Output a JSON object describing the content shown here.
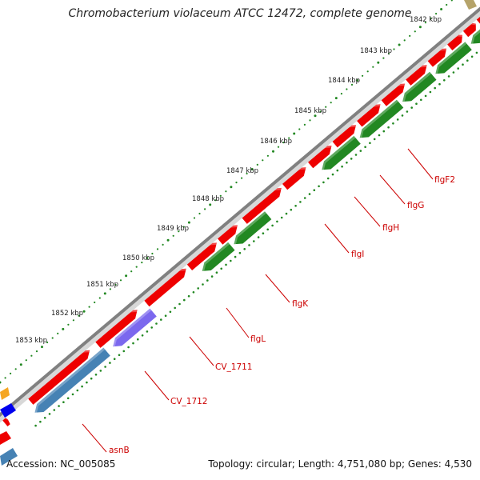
{
  "header": {
    "title": "Chromobacterium violaceum ATCC 12472, complete genome"
  },
  "footer": {
    "accession": "Accession: NC_005085",
    "summary": "Topology: circular; Length: 4,751,080 bp; Genes: 4,530"
  },
  "ticks": [
    "1842 kbp",
    "1843 kbp",
    "1844 kbp",
    "1845 kbp",
    "1846 kbp",
    "1847 kbp",
    "1848 kbp",
    "1849 kbp",
    "1850 kbp",
    "1851 kbp",
    "1852 kbp",
    "1853 kbp"
  ],
  "gene_labels": [
    "flgF2",
    "flgG",
    "flgH",
    "flgI",
    "flgK",
    "flgL",
    "CV_1711",
    "CV_1712",
    "asnB"
  ],
  "colors": {
    "backbone": "#8a8a8a",
    "forward_gene": "#ee0000",
    "reverse_gene": "#228822",
    "reverse_gene_alt": "#4682b4",
    "hypothetical_gene": "#7b68ee",
    "label": "#cc0000",
    "tick": "#228822"
  }
}
